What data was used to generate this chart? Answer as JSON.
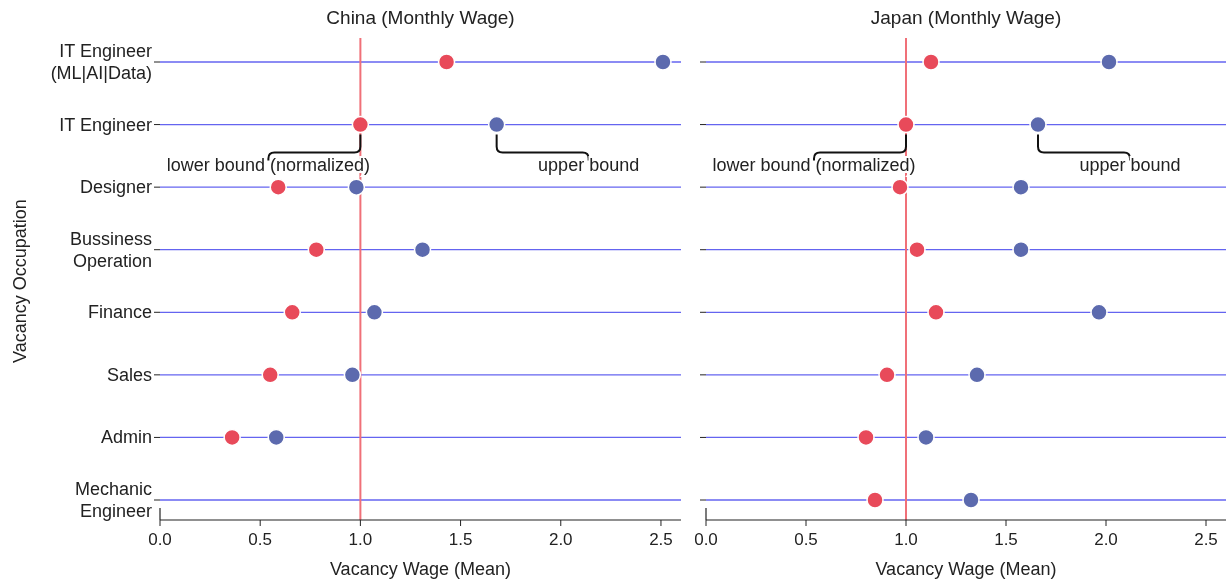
{
  "chart_data": [
    {
      "type": "scatter",
      "orientation": "horizontal",
      "title": "China (Monthly Wage)",
      "xlabel": "Vacancy Wage (Mean)",
      "ylabel": "Vacancy Occupation",
      "categories": [
        "IT Engineer\n(ML|AI|Data)",
        "IT Engineer",
        "Designer",
        "Bussiness\nOperation",
        "Finance",
        "Sales",
        "Admin",
        "Mechanic\nEngineer"
      ],
      "series": [
        {
          "color": "#e84a5a",
          "values": [
            1.43,
            1.0,
            0.59,
            0.78,
            0.66,
            0.55,
            0.36,
            null
          ]
        },
        {
          "color": "#5c6aae",
          "values": [
            2.51,
            1.68,
            0.98,
            1.31,
            1.07,
            0.96,
            0.58,
            null
          ]
        }
      ],
      "xlim": [
        0,
        2.6
      ],
      "xticks": [
        {
          "value": 0,
          "label": "0.0"
        },
        0.5,
        {
          "value": 1,
          "label": "1.0"
        },
        1.5,
        {
          "value": 2,
          "label": "2.0"
        },
        2.5
      ],
      "grid": "y",
      "marker": "circle",
      "ref_lines": [
        {
          "axis": "x",
          "value": 1,
          "color": "#f07078"
        }
      ],
      "annotations": [
        {
          "text": "lower bound (normalized)",
          "x": 1.0,
          "y": "IT Engineer"
        },
        {
          "text": "upper bound",
          "x": 1.68,
          "y": "IT Engineer"
        }
      ]
    },
    {
      "type": "scatter",
      "orientation": "horizontal",
      "title": "Japan (Monthly Wage)",
      "xlabel": "Vacancy Wage (Mean)",
      "categories": [
        "IT Engineer\n(ML|AI|Data)",
        "IT Engineer",
        "Designer",
        "Bussiness\nOperation",
        "Finance",
        "Sales",
        "Admin",
        "Mechanic\nEngineer"
      ],
      "tick_labels": "x",
      "series": [
        {
          "color": "#e84a5a",
          "values": [
            1.125,
            1.0,
            0.97,
            1.055,
            1.15,
            0.905,
            0.8,
            0.845
          ]
        },
        {
          "color": "#5c6aae",
          "values": [
            2.015,
            1.66,
            1.575,
            1.575,
            1.965,
            1.355,
            1.1,
            1.325
          ]
        }
      ],
      "xlim": [
        0,
        2.6
      ],
      "xticks": [
        {
          "value": 0,
          "label": "0.0"
        },
        0.5,
        {
          "value": 1,
          "label": "1.0"
        },
        1.5,
        {
          "value": 2,
          "label": "2.0"
        },
        2.5
      ],
      "grid": "y",
      "marker": "circle",
      "ref_lines": [
        {
          "axis": "x",
          "value": 1,
          "color": "#f07078"
        }
      ],
      "annotations": [
        {
          "text": "lower bound (normalized)",
          "x": 1.0,
          "y": "IT Engineer"
        },
        {
          "text": "upper bound",
          "x": 1.66,
          "y": "IT Engineer"
        }
      ]
    }
  ]
}
